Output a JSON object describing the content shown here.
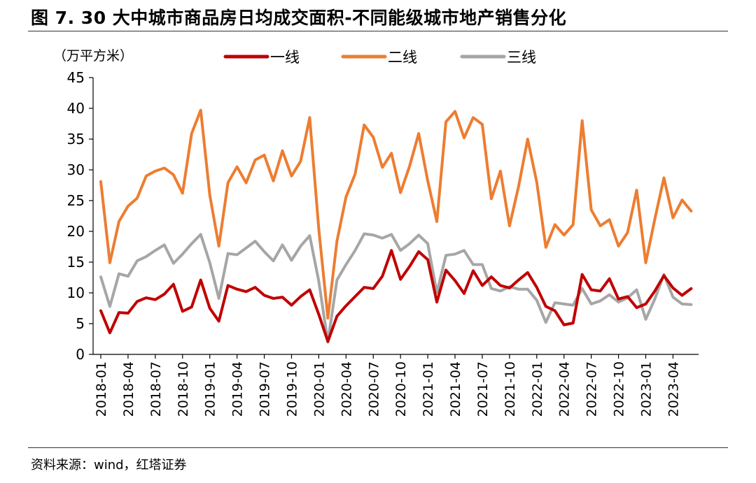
{
  "figure": {
    "title": "图 7. 30 大中城市商品房日均成交面积-不同能级城市地产销售分化",
    "source": "资料来源：wind，红塔证券"
  },
  "chart_data": {
    "type": "line",
    "unit_label": "（万平方米）",
    "ylim": [
      0,
      45
    ],
    "y_ticks": [
      0,
      5,
      10,
      15,
      20,
      25,
      30,
      35,
      40,
      45
    ],
    "grid": false,
    "legend_position": "top",
    "x": [
      "2018-01",
      "2018-02",
      "2018-03",
      "2018-04",
      "2018-05",
      "2018-06",
      "2018-07",
      "2018-08",
      "2018-09",
      "2018-10",
      "2018-11",
      "2018-12",
      "2019-01",
      "2019-02",
      "2019-03",
      "2019-04",
      "2019-05",
      "2019-06",
      "2019-07",
      "2019-08",
      "2019-09",
      "2019-10",
      "2019-11",
      "2019-12",
      "2020-01",
      "2020-02",
      "2020-03",
      "2020-04",
      "2020-05",
      "2020-06",
      "2020-07",
      "2020-08",
      "2020-09",
      "2020-10",
      "2020-11",
      "2020-12",
      "2021-01",
      "2021-02",
      "2021-03",
      "2021-04",
      "2021-05",
      "2021-06",
      "2021-07",
      "2021-08",
      "2021-09",
      "2021-10",
      "2021-11",
      "2021-12",
      "2022-01",
      "2022-02",
      "2022-03",
      "2022-04",
      "2022-05",
      "2022-06",
      "2022-07",
      "2022-08",
      "2022-09",
      "2022-10",
      "2022-11",
      "2022-12",
      "2023-01",
      "2023-02",
      "2023-03",
      "2023-04",
      "2023-05",
      "2023-06"
    ],
    "x_tick_labels": [
      "2018-01",
      "2018-04",
      "2018-07",
      "2018-10",
      "2019-01",
      "2019-04",
      "2019-07",
      "2019-10",
      "2020-01",
      "2020-04",
      "2020-07",
      "2020-10",
      "2021-01",
      "2021-04",
      "2021-07",
      "2021-10",
      "2022-01",
      "2022-04",
      "2022-07",
      "2022-10",
      "2023-01",
      "2023-04"
    ],
    "series": [
      {
        "name": "一线",
        "color": "#C00000",
        "values": [
          7.1,
          3.5,
          6.8,
          6.7,
          8.6,
          9.2,
          8.9,
          9.8,
          11.4,
          7.0,
          7.7,
          12.1,
          7.5,
          5.4,
          11.2,
          10.6,
          10.2,
          10.9,
          9.6,
          9.1,
          9.3,
          8.0,
          9.4,
          10.5,
          6.5,
          2.1,
          6.2,
          7.9,
          9.4,
          10.9,
          10.7,
          12.7,
          16.9,
          12.2,
          14.3,
          16.7,
          15.4,
          8.5,
          13.7,
          12.0,
          9.9,
          13.6,
          11.2,
          12.6,
          11.2,
          10.8,
          12.1,
          13.3,
          10.9,
          7.8,
          7.1,
          4.8,
          5.1,
          13.0,
          10.5,
          10.3,
          12.3,
          9.0,
          9.4,
          7.6,
          8.2,
          10.3,
          12.8,
          10.8,
          9.6,
          10.7
        ]
      },
      {
        "name": "二线",
        "color": "#ED7D31",
        "values": [
          28.1,
          14.9,
          21.6,
          24.1,
          25.4,
          29.0,
          29.8,
          30.3,
          29.2,
          26.2,
          35.9,
          39.7,
          25.9,
          17.6,
          27.9,
          30.5,
          27.9,
          31.6,
          32.4,
          28.2,
          33.1,
          29.0,
          31.4,
          38.5,
          20.4,
          5.9,
          18.4,
          25.6,
          29.3,
          37.3,
          35.3,
          30.4,
          32.7,
          26.3,
          30.6,
          35.9,
          28.2,
          21.6,
          37.8,
          39.5,
          35.2,
          38.5,
          37.4,
          25.3,
          29.8,
          20.9,
          27.3,
          35.0,
          28.0,
          17.4,
          21.1,
          19.4,
          21.1,
          38.0,
          23.5,
          20.9,
          21.9,
          17.6,
          19.8,
          26.7,
          14.9,
          22.0,
          28.7,
          22.2,
          25.1,
          23.3
        ]
      },
      {
        "name": "三线",
        "color": "#A6A6A6",
        "values": [
          12.6,
          7.8,
          13.1,
          12.7,
          15.2,
          15.9,
          16.9,
          17.8,
          14.8,
          16.3,
          18.0,
          19.5,
          14.9,
          9.1,
          16.4,
          16.2,
          17.3,
          18.4,
          16.7,
          15.2,
          17.8,
          15.3,
          17.6,
          19.3,
          11.9,
          2.0,
          12.1,
          14.6,
          16.9,
          19.6,
          19.4,
          18.9,
          19.5,
          16.9,
          18.0,
          19.4,
          18.0,
          10.0,
          16.1,
          16.3,
          16.9,
          14.6,
          14.6,
          10.7,
          10.3,
          11.0,
          10.6,
          10.6,
          8.8,
          5.2,
          8.4,
          8.2,
          8.0,
          10.7,
          8.2,
          8.7,
          9.7,
          8.5,
          9.2,
          10.5,
          5.7,
          9.0,
          13.0,
          9.3,
          8.2,
          8.1
        ]
      }
    ]
  }
}
